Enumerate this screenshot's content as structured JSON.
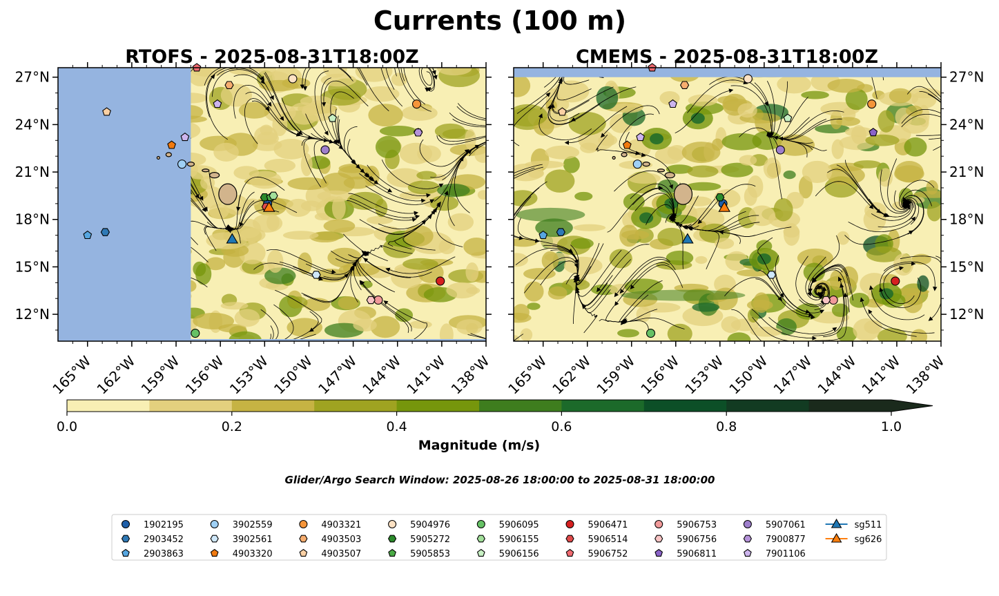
{
  "suptitle": "Currents (100 m)",
  "window_note": "Glider/Argo Search Window: 2025-08-26 18:00:00 to 2025-08-31 18:00:00",
  "colors": {
    "land_ocean_mask": "#95b4e0",
    "hawaii_land": "#d2b48c",
    "field_levels": [
      "#f8efb4",
      "#e3d07e",
      "#c6b343",
      "#9fa321",
      "#76960c",
      "#3e7d1e",
      "#1c6a2a",
      "#0c4f27",
      "#123b22",
      "#1a2a1c"
    ]
  },
  "chart_data": [
    {
      "type": "map",
      "title": "RTOFS - 2025-08-31T18:00Z",
      "lon_range": [
        -167.0,
        -138.0
      ],
      "lat_range": [
        10.3,
        27.6
      ],
      "data_east_of_lon": -158.0,
      "xtick_labels": [
        "165°W",
        "162°W",
        "159°W",
        "156°W",
        "153°W",
        "150°W",
        "147°W",
        "144°W",
        "141°W",
        "138°W"
      ],
      "ytick_labels": [
        "27°N",
        "24°N",
        "21°N",
        "18°N",
        "15°N",
        "12°N"
      ],
      "floats": [
        {
          "id": "1902195",
          "lon": -152.8,
          "lat": 19.0
        },
        {
          "id": "2903452",
          "lon": -163.8,
          "lat": 17.2
        },
        {
          "id": "2903863",
          "lon": -165.0,
          "lat": 17.0
        },
        {
          "id": "3902559",
          "lon": -158.6,
          "lat": 21.5
        },
        {
          "id": "3902561",
          "lon": -149.5,
          "lat": 14.5
        },
        {
          "id": "4903320",
          "lon": -159.3,
          "lat": 22.7
        },
        {
          "id": "4903321",
          "lon": -142.7,
          "lat": 25.3
        },
        {
          "id": "4903503",
          "lon": -155.4,
          "lat": 26.5
        },
        {
          "id": "4903507",
          "lon": -163.7,
          "lat": 24.8
        },
        {
          "id": "5904976",
          "lon": -151.1,
          "lat": 26.9
        },
        {
          "id": "5905272",
          "lon": -153.0,
          "lat": 19.4
        },
        {
          "id": "5905853",
          "lon": -152.6,
          "lat": 19.4
        },
        {
          "id": "5906095",
          "lon": -157.7,
          "lat": 10.8
        },
        {
          "id": "5906155",
          "lon": -152.4,
          "lat": 19.5
        },
        {
          "id": "5906156",
          "lon": -148.4,
          "lat": 24.4
        },
        {
          "id": "5906471",
          "lon": -141.1,
          "lat": 14.1
        },
        {
          "id": "5906514",
          "lon": -152.9,
          "lat": 18.8
        },
        {
          "id": "5906752",
          "lon": -157.6,
          "lat": 27.6
        },
        {
          "id": "5906753",
          "lon": -145.3,
          "lat": 12.9
        },
        {
          "id": "5906756",
          "lon": -145.8,
          "lat": 12.9
        },
        {
          "id": "5906811",
          "lon": -142.6,
          "lat": 23.5
        },
        {
          "id": "5907061",
          "lon": -148.9,
          "lat": 22.4
        },
        {
          "id": "7900877",
          "lon": -142.6,
          "lat": 23.5
        },
        {
          "id": "7901106",
          "lon": -156.2,
          "lat": 25.3
        },
        {
          "id": "7901106b",
          "lon": -158.4,
          "lat": 23.2
        }
      ],
      "gliders": [
        {
          "id": "sg511",
          "lon": -155.2,
          "lat": 16.7
        },
        {
          "id": "sg626",
          "lon": -152.7,
          "lat": 18.7
        }
      ]
    },
    {
      "type": "map",
      "title": "CMEMS - 2025-08-31T18:00Z",
      "lon_range": [
        -167.0,
        -138.0
      ],
      "lat_range": [
        10.3,
        27.6
      ],
      "data_south_of_lat": 27.0,
      "xtick_labels": [
        "165°W",
        "162°W",
        "159°W",
        "156°W",
        "153°W",
        "150°W",
        "147°W",
        "144°W",
        "141°W",
        "138°W"
      ],
      "ytick_labels": [
        "27°N",
        "24°N",
        "21°N",
        "18°N",
        "15°N",
        "12°N"
      ],
      "floats": [
        {
          "id": "1902195",
          "lon": -152.8,
          "lat": 19.0
        },
        {
          "id": "2903452",
          "lon": -163.8,
          "lat": 17.2
        },
        {
          "id": "2903863",
          "lon": -165.0,
          "lat": 17.0
        },
        {
          "id": "3902559",
          "lon": -158.6,
          "lat": 21.5
        },
        {
          "id": "3902561",
          "lon": -149.5,
          "lat": 14.5
        },
        {
          "id": "4903320",
          "lon": -159.3,
          "lat": 22.7
        },
        {
          "id": "4903321",
          "lon": -142.7,
          "lat": 25.3
        },
        {
          "id": "4903503",
          "lon": -155.4,
          "lat": 26.5
        },
        {
          "id": "4903507",
          "lon": -163.7,
          "lat": 24.8
        },
        {
          "id": "5904976",
          "lon": -151.1,
          "lat": 26.9
        },
        {
          "id": "5905272",
          "lon": -153.0,
          "lat": 19.4
        },
        {
          "id": "5906095",
          "lon": -157.7,
          "lat": 10.8
        },
        {
          "id": "5906156",
          "lon": -148.4,
          "lat": 24.4
        },
        {
          "id": "5906471",
          "lon": -141.1,
          "lat": 14.1
        },
        {
          "id": "5906752",
          "lon": -157.6,
          "lat": 27.6
        },
        {
          "id": "5906753",
          "lon": -145.3,
          "lat": 12.9
        },
        {
          "id": "5906756",
          "lon": -145.8,
          "lat": 12.9
        },
        {
          "id": "5906811",
          "lon": -142.6,
          "lat": 23.5
        },
        {
          "id": "5907061",
          "lon": -148.9,
          "lat": 22.4
        },
        {
          "id": "7901106",
          "lon": -156.2,
          "lat": 25.3
        },
        {
          "id": "7901106b",
          "lon": -158.4,
          "lat": 23.2
        }
      ],
      "gliders": [
        {
          "id": "sg511",
          "lon": -155.2,
          "lat": 16.7
        },
        {
          "id": "sg626",
          "lon": -152.7,
          "lat": 18.7
        }
      ]
    }
  ],
  "colorbar": {
    "label": "Magnitude (m/s)",
    "range": [
      0.0,
      1.0
    ],
    "bounds": [
      0.0,
      0.1,
      0.2,
      0.3,
      0.4,
      0.5,
      0.6,
      0.7,
      0.8,
      0.9,
      1.0
    ],
    "tick_labels": [
      "0.0",
      "0.2",
      "0.4",
      "0.6",
      "0.8",
      "1.0"
    ],
    "extend": "max"
  },
  "legend": {
    "entries": [
      {
        "label": "1902195",
        "marker": "circle",
        "color": "#1f5fa8"
      },
      {
        "label": "2903452",
        "marker": "hexagon",
        "color": "#2f79b5"
      },
      {
        "label": "2903863",
        "marker": "pentagon",
        "color": "#56a6e0"
      },
      {
        "label": "3902559",
        "marker": "circle",
        "color": "#9fd0f5"
      },
      {
        "label": "3902561",
        "marker": "hexagon",
        "color": "#cfe8fa"
      },
      {
        "label": "4903320",
        "marker": "pentagon",
        "color": "#f07a10"
      },
      {
        "label": "4903321",
        "marker": "circle",
        "color": "#f5953a"
      },
      {
        "label": "4903503",
        "marker": "hexagon",
        "color": "#f6ad6f"
      },
      {
        "label": "4903507",
        "marker": "pentagon",
        "color": "#fad0a4"
      },
      {
        "label": "5904976",
        "marker": "circle",
        "color": "#fde2c4"
      },
      {
        "label": "5905272",
        "marker": "hexagon",
        "color": "#2b8a2b"
      },
      {
        "label": "5905853",
        "marker": "pentagon",
        "color": "#4aaa45"
      },
      {
        "label": "5906095",
        "marker": "circle",
        "color": "#66c165"
      },
      {
        "label": "5906155",
        "marker": "hexagon",
        "color": "#a2df9a"
      },
      {
        "label": "5906156",
        "marker": "pentagon",
        "color": "#c8f0c4"
      },
      {
        "label": "5906471",
        "marker": "circle",
        "color": "#d62020"
      },
      {
        "label": "5906514",
        "marker": "hexagon",
        "color": "#e04a4a"
      },
      {
        "label": "5906752",
        "marker": "pentagon",
        "color": "#f06a70"
      },
      {
        "label": "5906753",
        "marker": "circle",
        "color": "#f19a9a"
      },
      {
        "label": "5906756",
        "marker": "hexagon",
        "color": "#f8c4c4"
      },
      {
        "label": "5906811",
        "marker": "pentagon",
        "color": "#8a63c8"
      },
      {
        "label": "5907061",
        "marker": "circle",
        "color": "#9e7fcc"
      },
      {
        "label": "7900877",
        "marker": "hexagon",
        "color": "#b592d9"
      },
      {
        "label": "7901106",
        "marker": "pentagon",
        "color": "#cdb5ee"
      },
      {
        "label": "sg511",
        "marker": "triangle",
        "color": "#1f77b4"
      },
      {
        "label": "sg626",
        "marker": "triangle",
        "color": "#ff7f0e"
      }
    ]
  }
}
